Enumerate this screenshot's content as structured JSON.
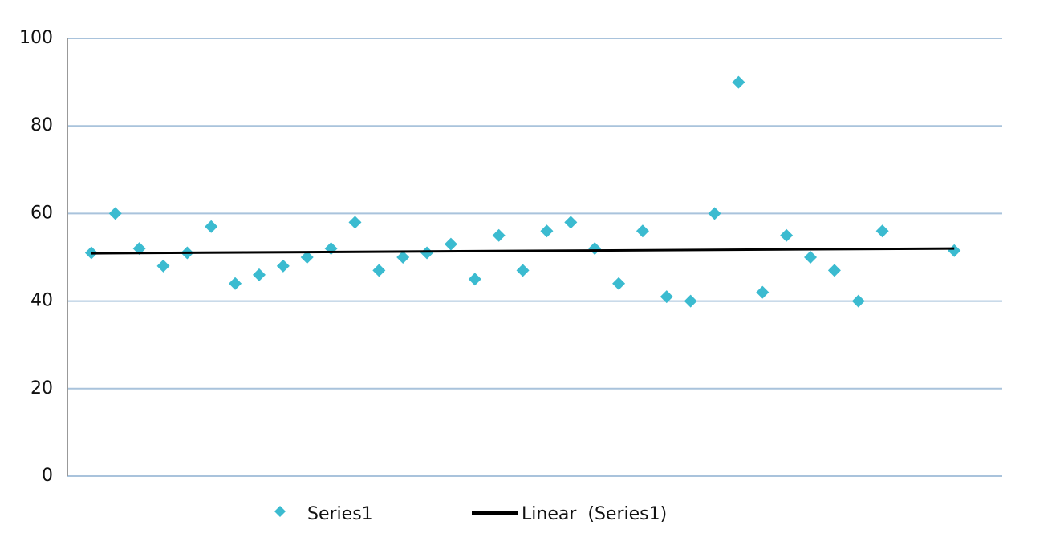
{
  "chart_data": {
    "type": "scatter",
    "series": [
      {
        "name": "Series1",
        "color": "#3bbbd0",
        "x": [
          1,
          2,
          3,
          4,
          5,
          6,
          7,
          8,
          9,
          10,
          11,
          12,
          13,
          14,
          15,
          16,
          17,
          18,
          19,
          20,
          21,
          22,
          23,
          24,
          25,
          26,
          27,
          28,
          29,
          30,
          31,
          32,
          33,
          34,
          37
        ],
        "values": [
          51,
          60,
          52,
          48,
          51,
          57,
          44,
          46,
          48,
          50,
          52,
          58,
          47,
          50,
          51,
          53,
          45,
          55,
          47,
          56,
          58,
          52,
          44,
          56,
          41,
          40,
          60,
          90,
          42,
          55,
          50,
          47,
          40,
          56,
          51.5
        ]
      }
    ],
    "trendline": {
      "name": "Linear  (Series1)",
      "color": "#000000",
      "x": [
        1,
        37
      ],
      "values": [
        50.9,
        52
      ]
    },
    "xlim": [
      0,
      39
    ],
    "ylim": [
      0,
      100
    ],
    "yticks": [
      0,
      20,
      40,
      60,
      80,
      100
    ],
    "grid": true,
    "legend": "bottom"
  }
}
